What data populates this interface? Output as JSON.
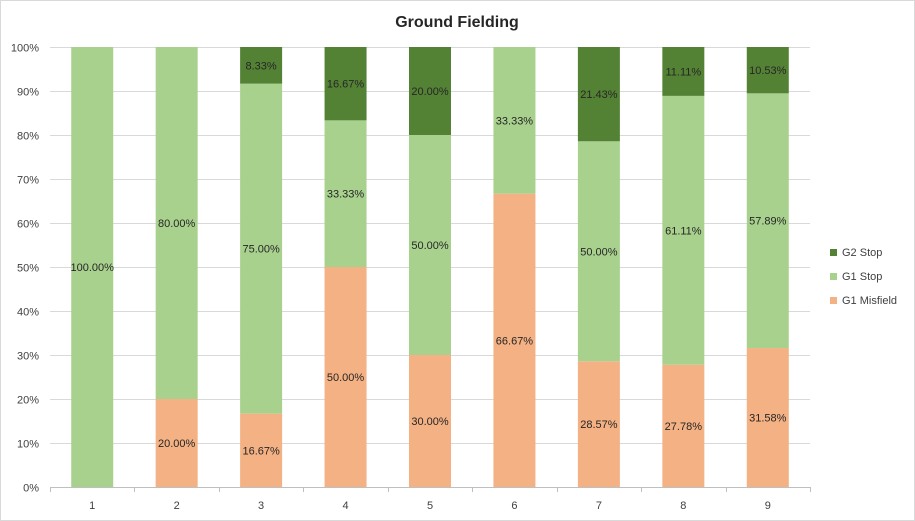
{
  "chart_data": {
    "type": "bar",
    "stacked": "percent",
    "title": "Ground Fielding",
    "xlabel": "",
    "ylabel": "",
    "categories": [
      "1",
      "2",
      "3",
      "4",
      "5",
      "6",
      "7",
      "8",
      "9"
    ],
    "ylim": [
      0,
      100
    ],
    "y_ticks": [
      "0%",
      "10%",
      "20%",
      "30%",
      "40%",
      "50%",
      "60%",
      "70%",
      "80%",
      "90%",
      "100%"
    ],
    "grid": true,
    "legend_position": "right",
    "series": [
      {
        "name": "G1 Misfield",
        "color": "#f4b183",
        "values": [
          0,
          20.0,
          16.67,
          50.0,
          30.0,
          66.67,
          28.57,
          27.78,
          31.58
        ],
        "labels": [
          "",
          "20.00%",
          "16.67%",
          "50.00%",
          "30.00%",
          "66.67%",
          "28.57%",
          "27.78%",
          "31.58%"
        ]
      },
      {
        "name": "G1 Stop",
        "color": "#a9d18e",
        "values": [
          100.0,
          80.0,
          75.0,
          33.33,
          50.0,
          33.33,
          50.0,
          61.11,
          57.89
        ],
        "labels": [
          "100.00%",
          "80.00%",
          "75.00%",
          "33.33%",
          "50.00%",
          "33.33%",
          "50.00%",
          "61.11%",
          "57.89%"
        ]
      },
      {
        "name": "G2 Stop",
        "color": "#548235",
        "values": [
          0,
          0,
          8.33,
          16.67,
          20.0,
          0,
          21.43,
          11.11,
          10.53
        ],
        "labels": [
          "",
          "",
          "8.33%",
          "16.67%",
          "20.00%",
          "",
          "21.43%",
          "11.11%",
          "10.53%"
        ]
      }
    ]
  }
}
